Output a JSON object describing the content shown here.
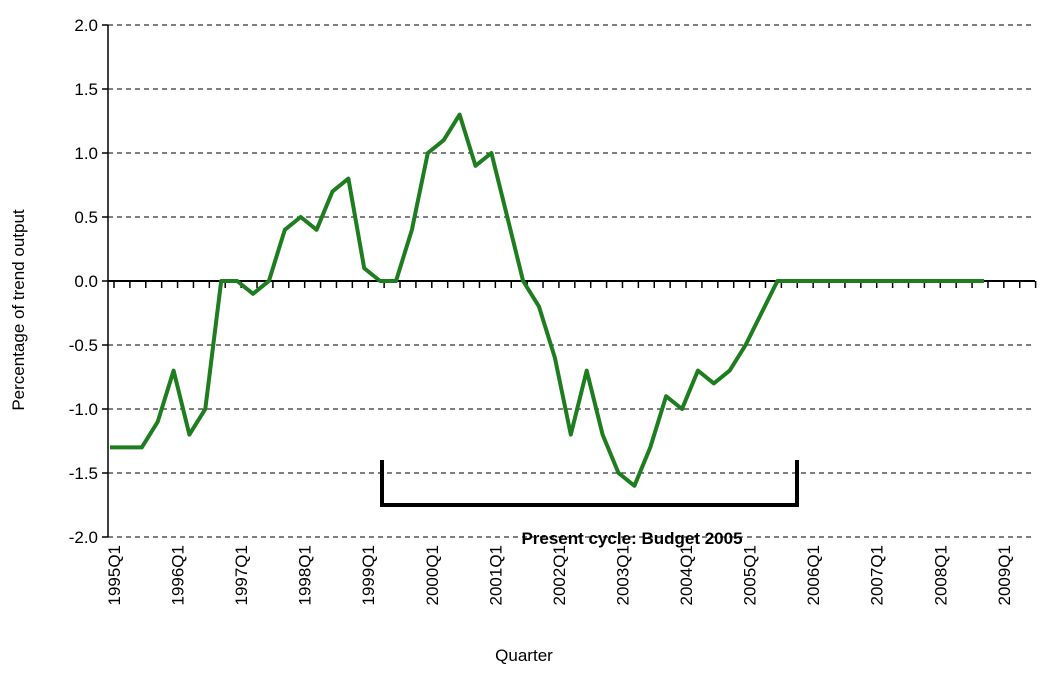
{
  "chart_data": {
    "type": "line",
    "y_label": "Percentage of trend output",
    "x_label": "Quarter",
    "annotation": "Present cycle: Budget 2005",
    "categories": [
      "1995Q1",
      null,
      null,
      null,
      "1996Q1",
      null,
      null,
      null,
      "1997Q1",
      null,
      null,
      null,
      "1998Q1",
      null,
      null,
      null,
      "1999Q1",
      null,
      null,
      null,
      "2000Q1",
      null,
      null,
      null,
      "2001Q1",
      null,
      null,
      null,
      "2002Q1",
      null,
      null,
      null,
      "2003Q1",
      null,
      null,
      null,
      "2004Q1",
      null,
      null,
      null,
      "2005Q1",
      null,
      null,
      null,
      "2006Q1",
      null,
      null,
      null,
      "2007Q1",
      null,
      null,
      null,
      "2008Q1",
      null,
      null,
      null,
      "2009Q1",
      null,
      null
    ],
    "series": [
      {
        "color": "#1e7d1e",
        "values": [
          -1.3,
          -1.3,
          -1.3,
          -1.1,
          -0.7,
          -1.2,
          -1.0,
          0.0,
          0.0,
          -0.1,
          0.0,
          0.4,
          0.5,
          0.4,
          0.7,
          0.8,
          0.1,
          0.0,
          0.0,
          0.4,
          1.0,
          1.1,
          1.3,
          0.9,
          1.0,
          0.5,
          0.0,
          -0.2,
          -0.6,
          -1.2,
          -0.7,
          -1.2,
          -1.5,
          -1.6,
          -1.3,
          -0.9,
          -1.0,
          -0.7,
          -0.8,
          -0.7,
          -0.5,
          -0.25,
          0.0,
          0.0,
          0.0,
          0.0,
          0.0,
          0.0,
          0.0,
          0.0,
          0.0,
          0.0,
          0.0,
          0.0,
          0.0,
          0.0,
          null,
          null,
          null
        ]
      }
    ],
    "ylim": [
      -2.0,
      2.0
    ],
    "yticks": [
      {
        "value": -2.0,
        "label": "-2.0"
      },
      {
        "value": -1.5,
        "label": "-1.5"
      },
      {
        "value": -1.0,
        "label": "-1.0"
      },
      {
        "value": -0.5,
        "label": "-0.5"
      },
      {
        "value": 0.0,
        "label": "0.0"
      },
      {
        "value": 0.5,
        "label": "0.5"
      },
      {
        "value": 1.0,
        "label": "1.0"
      },
      {
        "value": 1.5,
        "label": "1.5"
      },
      {
        "value": 2.0,
        "label": "2.0"
      }
    ],
    "grid": true
  }
}
